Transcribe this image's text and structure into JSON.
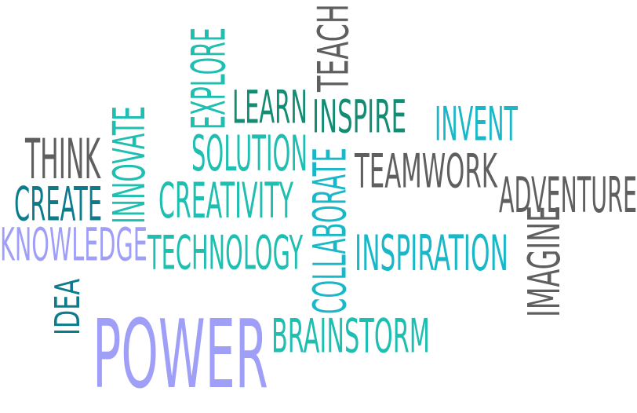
{
  "palette": {
    "gray": "#5f5f5f",
    "teal": "#1ebfb0",
    "cyan": "#19b8c8",
    "sea_green": "#138c73",
    "steel_teal": "#0c7c8c",
    "lavender": "#9f9ff7"
  },
  "words": [
    {
      "text": "TEACH",
      "color": "#5f5f5f",
      "orientation": "vertical"
    },
    {
      "text": "EXPLORE",
      "color": "#1ebfb0",
      "orientation": "vertical"
    },
    {
      "text": "LEARN",
      "color": "#138c73",
      "orientation": "horizontal"
    },
    {
      "text": "INSPIRE",
      "color": "#138c73",
      "orientation": "horizontal"
    },
    {
      "text": "INVENT",
      "color": "#19b8c8",
      "orientation": "horizontal"
    },
    {
      "text": "INNOVATE",
      "color": "#1ebfb0",
      "orientation": "vertical"
    },
    {
      "text": "SOLUTION",
      "color": "#1ebfb0",
      "orientation": "horizontal"
    },
    {
      "text": "THINK",
      "color": "#5f5f5f",
      "orientation": "horizontal"
    },
    {
      "text": "COLLABORATE",
      "color": "#19b8c8",
      "orientation": "vertical"
    },
    {
      "text": "TEAMWORK",
      "color": "#5f5f5f",
      "orientation": "horizontal"
    },
    {
      "text": "CREATE",
      "color": "#0c7c8c",
      "orientation": "horizontal"
    },
    {
      "text": "CREATIVITY",
      "color": "#1ebfb0",
      "orientation": "horizontal"
    },
    {
      "text": "ADVENTURE",
      "color": "#5f5f5f",
      "orientation": "horizontal"
    },
    {
      "text": "KNOWLEDGE",
      "color": "#9f9ff7",
      "orientation": "horizontal"
    },
    {
      "text": "TECHNOLOGY",
      "color": "#1ebfb0",
      "orientation": "horizontal"
    },
    {
      "text": "INSPIRATION",
      "color": "#19b8c8",
      "orientation": "horizontal"
    },
    {
      "text": "IMAGINE",
      "color": "#5f5f5f",
      "orientation": "vertical"
    },
    {
      "text": "IDEA",
      "color": "#0c7c8c",
      "orientation": "vertical"
    },
    {
      "text": "POWER",
      "color": "#9f9ff7",
      "orientation": "horizontal"
    },
    {
      "text": "BRAINSTORM",
      "color": "#1ebfb0",
      "orientation": "horizontal"
    }
  ]
}
